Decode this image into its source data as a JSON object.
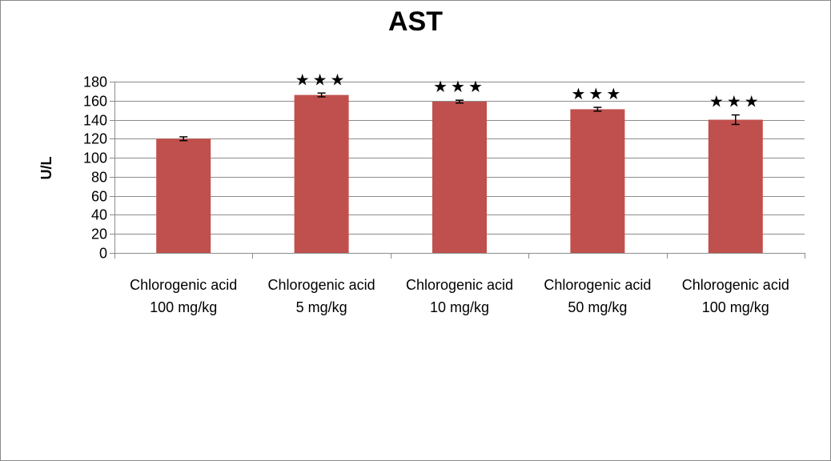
{
  "chart_data": {
    "type": "bar",
    "title": "AST",
    "ylabel": "U/L",
    "xlabel": "",
    "ylim": [
      0,
      180
    ],
    "yticks": [
      0,
      20,
      40,
      60,
      80,
      100,
      120,
      140,
      160,
      180
    ],
    "grid": true,
    "categories": [
      [
        "Chlorogenic acid",
        "100 mg/kg"
      ],
      [
        "Chlorogenic acid",
        "5 mg/kg"
      ],
      [
        "Chlorogenic acid",
        "10 mg/kg"
      ],
      [
        "Chlorogenic acid",
        "50 mg/kg"
      ],
      [
        "Chlorogenic acid",
        "100 mg/kg"
      ]
    ],
    "values": [
      120,
      166,
      159,
      151,
      140
    ],
    "errors": [
      2,
      2,
      1.5,
      2,
      5
    ],
    "annotations": [
      "",
      "★★★",
      "★★★",
      "★★★",
      "★★★"
    ],
    "bar_color": "#c0504d",
    "grid_color": "#8c8c8c"
  }
}
